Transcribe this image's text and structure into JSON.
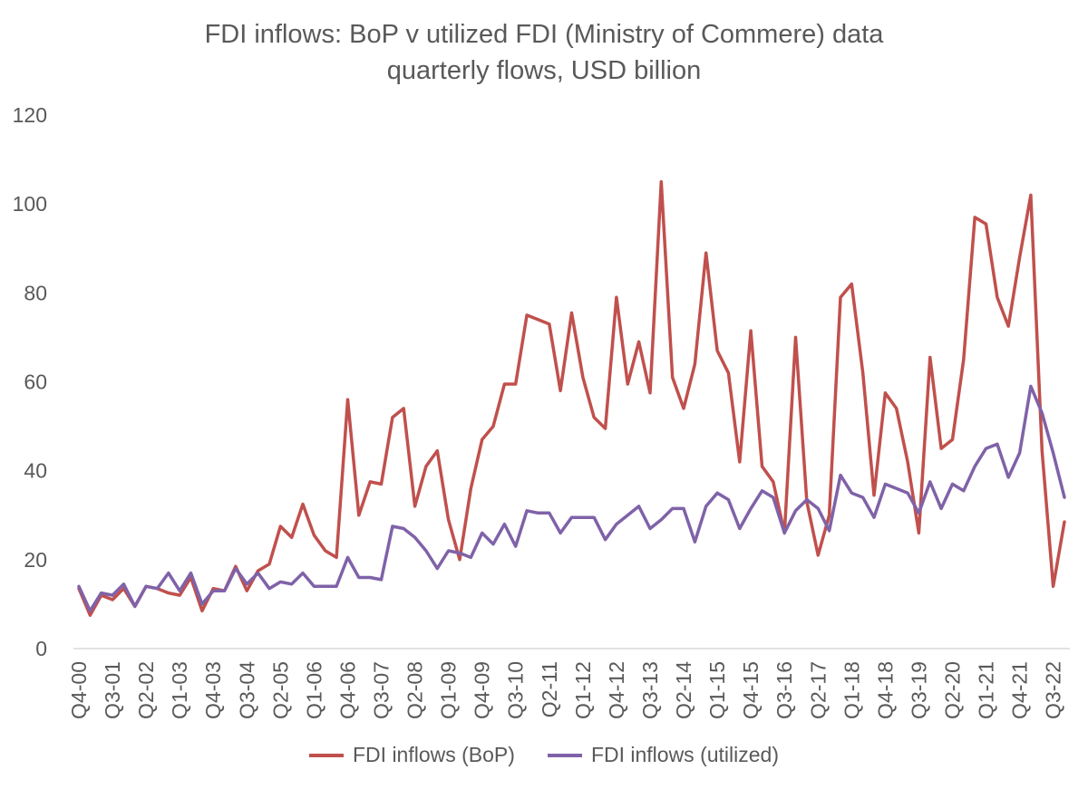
{
  "chart_data": {
    "type": "line",
    "title": "FDI inflows: BoP v utilized FDI (Ministry of Commere) data",
    "subtitle": "quarterly flows, USD billion",
    "ylim": [
      0,
      120
    ],
    "yticks": [
      0,
      20,
      40,
      60,
      80,
      100,
      120
    ],
    "grid": false,
    "legend_position": "bottom",
    "x_tick_labels": [
      "Q4-00",
      "Q3-01",
      "Q2-02",
      "Q1-03",
      "Q4-03",
      "Q3-04",
      "Q2-05",
      "Q1-06",
      "Q4-06",
      "Q3-07",
      "Q2-08",
      "Q1-09",
      "Q4-09",
      "Q3-10",
      "Q2-11",
      "Q1-12",
      "Q4-12",
      "Q3-13",
      "Q2-14",
      "Q1-15",
      "Q4-15",
      "Q3-16",
      "Q2-17",
      "Q1-18",
      "Q4-18",
      "Q3-19",
      "Q2-20",
      "Q1-21",
      "Q4-21",
      "Q3-22"
    ],
    "x": [
      "Q4-00",
      "Q1-01",
      "Q2-01",
      "Q3-01",
      "Q4-01",
      "Q1-02",
      "Q2-02",
      "Q3-02",
      "Q4-02",
      "Q1-03",
      "Q2-03",
      "Q3-03",
      "Q4-03",
      "Q1-04",
      "Q2-04",
      "Q3-04",
      "Q4-04",
      "Q1-05",
      "Q2-05",
      "Q3-05",
      "Q4-05",
      "Q1-06",
      "Q2-06",
      "Q3-06",
      "Q4-06",
      "Q1-07",
      "Q2-07",
      "Q3-07",
      "Q4-07",
      "Q1-08",
      "Q2-08",
      "Q3-08",
      "Q4-08",
      "Q1-09",
      "Q2-09",
      "Q3-09",
      "Q4-09",
      "Q1-10",
      "Q2-10",
      "Q3-10",
      "Q4-10",
      "Q1-11",
      "Q2-11",
      "Q3-11",
      "Q4-11",
      "Q1-12",
      "Q2-12",
      "Q3-12",
      "Q4-12",
      "Q1-13",
      "Q2-13",
      "Q3-13",
      "Q4-13",
      "Q1-14",
      "Q2-14",
      "Q3-14",
      "Q4-14",
      "Q1-15",
      "Q2-15",
      "Q3-15",
      "Q4-15",
      "Q1-16",
      "Q2-16",
      "Q3-16",
      "Q4-16",
      "Q1-17",
      "Q2-17",
      "Q3-17",
      "Q4-17",
      "Q1-18",
      "Q2-18",
      "Q3-18",
      "Q4-18",
      "Q1-19",
      "Q2-19",
      "Q3-19",
      "Q4-19",
      "Q1-20",
      "Q2-20",
      "Q3-20",
      "Q4-20",
      "Q1-21",
      "Q2-21",
      "Q3-21",
      "Q4-21",
      "Q1-22",
      "Q2-22",
      "Q3-22",
      "Q4-22"
    ],
    "series": [
      {
        "name": "FDI inflows (BoP)",
        "color": "#C0504D",
        "values": [
          13.5,
          7.5,
          12,
          11,
          13.5,
          9.5,
          14,
          13.5,
          12.5,
          12,
          16,
          8.5,
          13.5,
          13,
          18.5,
          13,
          17.5,
          19,
          27.5,
          25,
          32.5,
          25.5,
          22,
          20.5,
          56,
          30,
          37.5,
          37,
          52,
          54,
          32,
          41,
          44.5,
          29,
          20,
          36,
          47,
          50,
          59.5,
          59.5,
          75,
          74,
          73,
          58,
          75.5,
          61,
          52,
          49.5,
          79,
          59.5,
          69,
          57.5,
          105,
          61,
          54,
          64,
          89,
          67,
          62,
          42,
          71.5,
          41,
          37.5,
          26,
          70,
          33,
          21,
          30,
          79,
          82,
          62,
          34.5,
          57.5,
          54,
          42,
          26,
          65.5,
          45,
          47,
          65,
          97,
          95.5,
          79,
          72.5,
          88,
          102,
          44.5,
          14,
          28.5
        ]
      },
      {
        "name": "FDI inflows (utilized)",
        "color": "#7F62A8",
        "values": [
          14,
          8.5,
          12.5,
          12,
          14.5,
          9.5,
          14,
          13.5,
          17,
          13,
          17,
          10,
          13,
          13,
          18,
          14.5,
          17,
          13.5,
          15,
          14.5,
          17,
          14,
          14,
          14,
          20.5,
          16,
          16,
          15.5,
          27.5,
          27,
          25,
          22,
          18,
          22,
          21.5,
          20.5,
          26,
          23.5,
          28,
          23,
          31,
          30.5,
          30.5,
          26,
          29.5,
          29.5,
          29.5,
          24.5,
          28,
          30,
          32,
          27,
          29,
          31.5,
          31.5,
          24,
          32,
          35,
          33.5,
          27,
          31.5,
          35.5,
          34,
          26,
          31,
          33.5,
          31.5,
          26.5,
          39,
          35,
          34,
          29.5,
          37,
          36,
          35,
          30.5,
          37.5,
          31.5,
          37,
          35.5,
          41,
          45,
          46,
          38.5,
          44,
          59,
          53,
          44,
          34
        ]
      }
    ]
  }
}
